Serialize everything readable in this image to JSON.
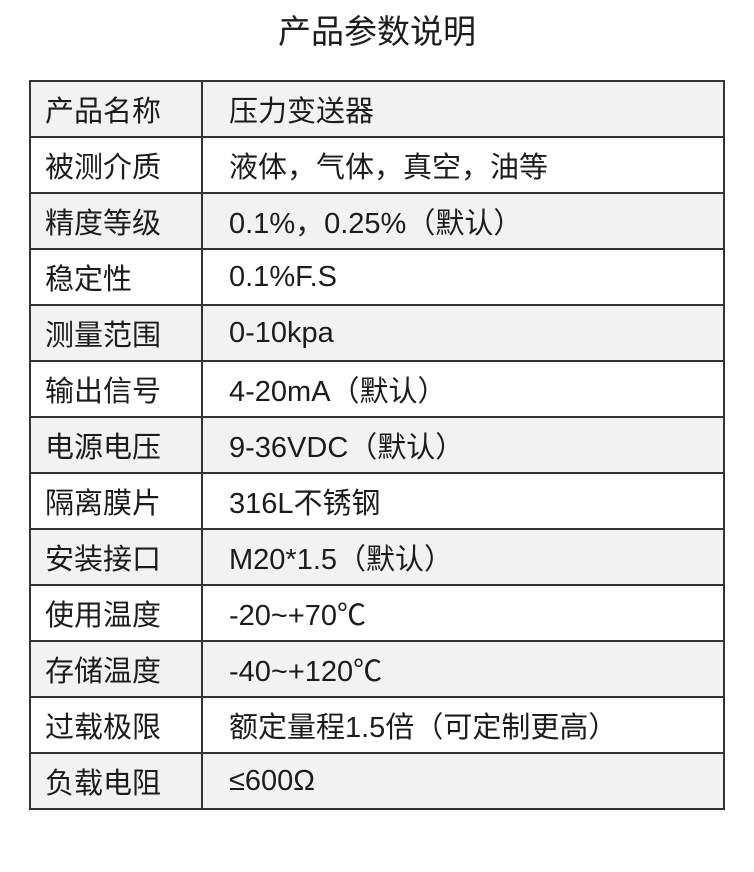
{
  "page": {
    "title": "产品参数说明"
  },
  "colors": {
    "border": "#333333",
    "row_alt": "#f2f2f2",
    "row_default": "#ffffff",
    "text": "#1c1c1c",
    "page_bg": "#ffffff"
  },
  "table": {
    "rows": [
      {
        "label": "产品名称",
        "value": "压力变送器"
      },
      {
        "label": "被测介质",
        "value": "液体，气体，真空，油等"
      },
      {
        "label": "精度等级",
        "value": "0.1%，0.25%（默认）"
      },
      {
        "label": "稳定性",
        "value": "0.1%F.S"
      },
      {
        "label": "测量范围",
        "value": "0-10kpa"
      },
      {
        "label": "输出信号",
        "value": "4-20mA（默认）"
      },
      {
        "label": "电源电压",
        "value": "9-36VDC（默认）"
      },
      {
        "label": "隔离膜片",
        "value": "316L不锈钢"
      },
      {
        "label": "安装接口",
        "value": "M20*1.5（默认）"
      },
      {
        "label": "使用温度",
        "value": "-20~+70℃"
      },
      {
        "label": "存储温度",
        "value": "-40~+120℃"
      },
      {
        "label": "过载极限",
        "value": "额定量程1.5倍（可定制更高）"
      },
      {
        "label": "负载电阻",
        "value": "≤600Ω"
      }
    ]
  }
}
